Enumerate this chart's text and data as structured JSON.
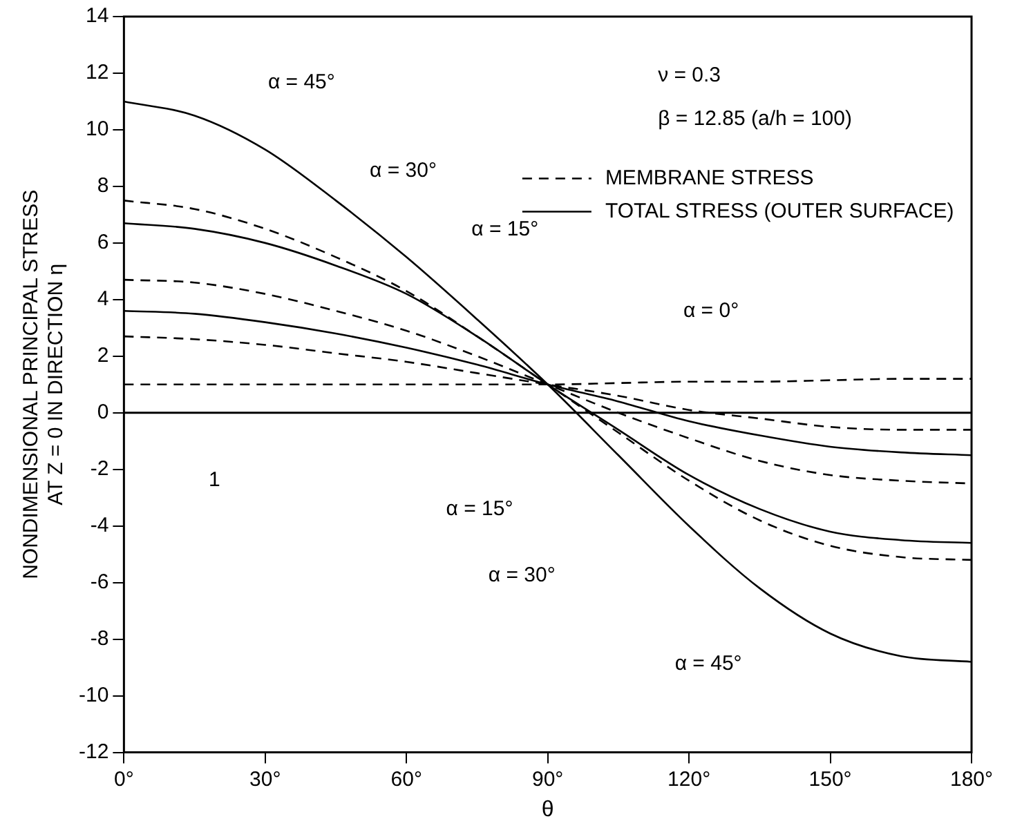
{
  "chart_data": {
    "type": "line",
    "xlabel": "θ",
    "ylabel": "NONDIMENSIONAL PRINCIPAL STRESS\nAT Z = 0 IN DIRECTION η",
    "x": [
      0,
      15,
      30,
      45,
      60,
      75,
      90,
      105,
      120,
      135,
      150,
      165,
      180
    ],
    "series": [
      {
        "name": "MEMBRANE STRESS",
        "color": "#000000",
        "line_style": "dashed",
        "values": [
          7.5,
          7.2,
          6.5,
          5.5,
          4.3,
          2.7,
          1,
          -0.7,
          -2.4,
          -3.8,
          -4.7,
          -5.1,
          -5.2
        ]
      },
      {
        "name": "TOTAL STRESS (OUTER SURFACE)",
        "color": "#000000",
        "line_style": "solid",
        "values": [
          11,
          10.5,
          9.3,
          7.5,
          5.5,
          3.3,
          1,
          -1.5,
          -4,
          -6.2,
          -7.8,
          -8.6,
          -8.8
        ]
      },
      {
        "color": "#000000",
        "line_style": "solid",
        "values": [
          6.7,
          6.5,
          6,
          5.2,
          4.2,
          2.7,
          1,
          -0.6,
          -2.2,
          -3.4,
          -4.2,
          -4.5,
          -4.6
        ]
      },
      {
        "color": "#000000",
        "line_style": "dashed",
        "values": [
          4.7,
          4.6,
          4.2,
          3.6,
          2.9,
          2,
          1,
          0,
          -0.9,
          -1.7,
          -2.2,
          -2.4,
          -2.5
        ]
      },
      {
        "color": "#000000",
        "line_style": "solid",
        "values": [
          3.6,
          3.5,
          3.2,
          2.8,
          2.3,
          1.7,
          1,
          0.4,
          -0.3,
          -0.8,
          -1.2,
          -1.4,
          -1.5
        ]
      },
      {
        "color": "#000000",
        "line_style": "dashed",
        "values": [
          2.7,
          2.6,
          2.4,
          2.1,
          1.8,
          1.4,
          1,
          0.6,
          0.1,
          -0.2,
          -0.5,
          -0.6,
          -0.6
        ]
      },
      {
        "color": "#000000",
        "line_style": "dashed",
        "values": [
          1,
          1,
          1,
          1,
          1,
          1,
          1,
          1.05,
          1.1,
          1.1,
          1.15,
          1.2,
          1.2
        ]
      }
    ],
    "xlim": [
      0,
      180
    ],
    "xticks": [
      {
        "value": 0,
        "label": "0°"
      },
      {
        "value": 30,
        "label": "30°"
      },
      {
        "value": 60,
        "label": "60°"
      },
      {
        "value": 90,
        "label": "90°"
      },
      {
        "value": 120,
        "label": "120°"
      },
      {
        "value": 150,
        "label": "150°"
      },
      {
        "value": 180,
        "label": "180°"
      }
    ],
    "ylim": [
      -12,
      14
    ],
    "yticks": [
      -12,
      -10,
      -8,
      -6,
      -4,
      -2,
      0,
      2,
      4,
      6,
      8,
      10,
      12,
      14
    ],
    "ref_lines": [
      {
        "axis": "y",
        "value": 0
      }
    ],
    "grid": false,
    "legend": "top right",
    "marker": "none",
    "annotations": [
      "ν = 0.3",
      "β = 12.85 (a/h = 100)",
      "α = 45°",
      "α = 30°",
      "α = 15°",
      "α = 0°",
      "1",
      "α = 15°",
      "α = 30°",
      "α = 45°"
    ]
  }
}
